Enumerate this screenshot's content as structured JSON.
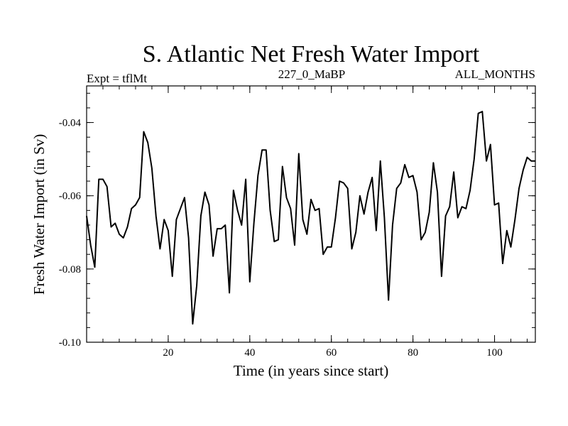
{
  "chart_data": {
    "type": "line",
    "title": "S. Atlantic Net Fresh Water Import",
    "left_label": "Expt = tflMt",
    "center_label": "227_0_MaBP",
    "right_label": "ALL_MONTHS",
    "xlabel": "Time (in years since start)",
    "ylabel": "Fresh Water Import (in Sv)",
    "xlim": [
      0,
      110
    ],
    "ylim": [
      -0.1,
      -0.03
    ],
    "x_ticks": [
      20,
      40,
      60,
      80,
      100
    ],
    "x_tick_labels": [
      "20",
      "40",
      "60",
      "80",
      "100"
    ],
    "y_ticks": [
      -0.1,
      -0.08,
      -0.06,
      -0.04
    ],
    "y_tick_labels": [
      "-0.10",
      "-0.08",
      "-0.06",
      "-0.04"
    ],
    "x_minor_step": 4,
    "y_minor_step": 0.004,
    "grid": false,
    "series": [
      {
        "name": "Net Fresh Water Import",
        "x": [
          0,
          1,
          2,
          3,
          4,
          5,
          6,
          7,
          8,
          9,
          10,
          11,
          12,
          13,
          14,
          15,
          16,
          17,
          18,
          19,
          20,
          21,
          22,
          23,
          24,
          25,
          26,
          27,
          28,
          29,
          30,
          31,
          32,
          33,
          34,
          35,
          36,
          37,
          38,
          39,
          40,
          41,
          42,
          43,
          44,
          45,
          46,
          47,
          48,
          49,
          50,
          51,
          52,
          53,
          54,
          55,
          56,
          57,
          58,
          59,
          60,
          61,
          62,
          63,
          64,
          65,
          66,
          67,
          68,
          69,
          70,
          71,
          72,
          73,
          74,
          75,
          76,
          77,
          78,
          79,
          80,
          81,
          82,
          83,
          84,
          85,
          86,
          87,
          88,
          89,
          90,
          91,
          92,
          93,
          94,
          95,
          96,
          97,
          98,
          99,
          100,
          101,
          102,
          103,
          104,
          105,
          106,
          107,
          108,
          109,
          110
        ],
        "y": [
          -0.0655,
          -0.0735,
          -0.0795,
          -0.0555,
          -0.0555,
          -0.0575,
          -0.0685,
          -0.0675,
          -0.0705,
          -0.0715,
          -0.0685,
          -0.0635,
          -0.0625,
          -0.0605,
          -0.0425,
          -0.0455,
          -0.0525,
          -0.0655,
          -0.0745,
          -0.0665,
          -0.0695,
          -0.082,
          -0.0665,
          -0.0635,
          -0.0605,
          -0.0715,
          -0.095,
          -0.0845,
          -0.0655,
          -0.059,
          -0.0625,
          -0.0765,
          -0.069,
          -0.069,
          -0.068,
          -0.0865,
          -0.0585,
          -0.064,
          -0.068,
          -0.0555,
          -0.0835,
          -0.0675,
          -0.0545,
          -0.0475,
          -0.0475,
          -0.064,
          -0.0725,
          -0.072,
          -0.052,
          -0.0605,
          -0.0635,
          -0.0735,
          -0.0485,
          -0.0665,
          -0.0705,
          -0.061,
          -0.064,
          -0.0635,
          -0.076,
          -0.074,
          -0.074,
          -0.066,
          -0.056,
          -0.0565,
          -0.058,
          -0.0745,
          -0.07,
          -0.06,
          -0.065,
          -0.059,
          -0.055,
          -0.0695,
          -0.0505,
          -0.066,
          -0.0885,
          -0.068,
          -0.058,
          -0.0565,
          -0.0515,
          -0.055,
          -0.0545,
          -0.059,
          -0.072,
          -0.07,
          -0.0645,
          -0.051,
          -0.059,
          -0.082,
          -0.0655,
          -0.063,
          -0.0535,
          -0.066,
          -0.063,
          -0.0635,
          -0.0585,
          -0.05,
          -0.0375,
          -0.037,
          -0.0505,
          -0.046,
          -0.0625,
          -0.062,
          -0.0785,
          -0.0695,
          -0.074,
          -0.0665,
          -0.058,
          -0.053,
          -0.0495,
          -0.0505,
          -0.0505
        ]
      }
    ]
  }
}
